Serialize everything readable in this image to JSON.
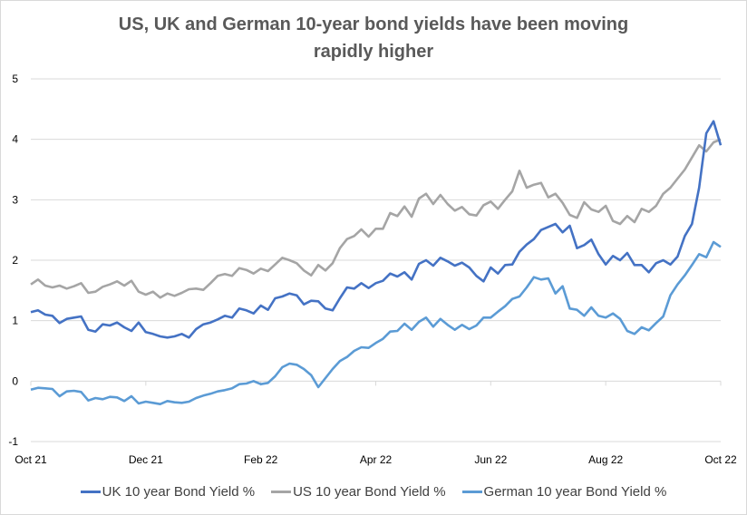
{
  "chart_data": {
    "type": "line",
    "title_line1": "US, UK and German 10-year bond yields have been moving",
    "title_line2": "rapidly higher",
    "title": "US, UK and German 10-year bond yields have been moving rapidly higher",
    "xlabel": "",
    "ylabel": "",
    "ylim": [
      -1,
      5
    ],
    "yticks": [
      "-1",
      "0",
      "1",
      "2",
      "3",
      "4",
      "5"
    ],
    "xticks": [
      "Oct 21",
      "Dec 21",
      "Feb 22",
      "Apr 22",
      "Jun 22",
      "Aug 22",
      "Oct 22"
    ],
    "x_range_months": [
      0,
      12
    ],
    "grid": true,
    "legend_position": "bottom",
    "series": [
      {
        "name": "UK 10 year Bond Yield %",
        "color": "#4472c4",
        "values": [
          1.14,
          1.17,
          1.1,
          1.08,
          0.96,
          1.03,
          1.05,
          1.07,
          0.85,
          0.82,
          0.94,
          0.92,
          0.97,
          0.89,
          0.83,
          0.97,
          0.81,
          0.78,
          0.74,
          0.72,
          0.74,
          0.78,
          0.72,
          0.86,
          0.94,
          0.97,
          1.02,
          1.08,
          1.05,
          1.2,
          1.17,
          1.12,
          1.25,
          1.18,
          1.37,
          1.4,
          1.45,
          1.42,
          1.27,
          1.33,
          1.32,
          1.2,
          1.17,
          1.37,
          1.55,
          1.53,
          1.62,
          1.54,
          1.62,
          1.66,
          1.78,
          1.73,
          1.8,
          1.68,
          1.94,
          2.0,
          1.91,
          2.04,
          1.98,
          1.91,
          1.96,
          1.88,
          1.74,
          1.65,
          1.88,
          1.78,
          1.92,
          1.93,
          2.14,
          2.26,
          2.35,
          2.5,
          2.55,
          2.6,
          2.46,
          2.57,
          2.2,
          2.25,
          2.34,
          2.1,
          1.93,
          2.07,
          2.0,
          2.12,
          1.92,
          1.92,
          1.8,
          1.95,
          2.0,
          1.93,
          2.06,
          2.4,
          2.6,
          3.2,
          4.1,
          4.3,
          3.9
        ]
      },
      {
        "name": "US 10 year Bond Yield %",
        "color": "#a5a5a5",
        "values": [
          1.6,
          1.68,
          1.58,
          1.55,
          1.58,
          1.53,
          1.57,
          1.62,
          1.46,
          1.48,
          1.56,
          1.6,
          1.65,
          1.58,
          1.66,
          1.48,
          1.43,
          1.48,
          1.38,
          1.45,
          1.41,
          1.46,
          1.52,
          1.53,
          1.51,
          1.62,
          1.74,
          1.77,
          1.74,
          1.87,
          1.84,
          1.78,
          1.86,
          1.82,
          1.93,
          2.04,
          2.0,
          1.95,
          1.83,
          1.75,
          1.92,
          1.83,
          1.95,
          2.2,
          2.35,
          2.4,
          2.51,
          2.39,
          2.52,
          2.52,
          2.78,
          2.73,
          2.89,
          2.72,
          3.02,
          3.1,
          2.93,
          3.08,
          2.93,
          2.82,
          2.88,
          2.76,
          2.74,
          2.91,
          2.97,
          2.85,
          3.0,
          3.14,
          3.48,
          3.2,
          3.25,
          3.28,
          3.04,
          3.1,
          2.95,
          2.75,
          2.7,
          2.96,
          2.84,
          2.8,
          2.9,
          2.65,
          2.6,
          2.73,
          2.63,
          2.85,
          2.8,
          2.9,
          3.1,
          3.2,
          3.35,
          3.5,
          3.7,
          3.9,
          3.8,
          3.95,
          4.0
        ]
      },
      {
        "name": "German 10 year Bond Yield %",
        "color": "#5b9bd5",
        "values": [
          -0.14,
          -0.11,
          -0.12,
          -0.13,
          -0.25,
          -0.17,
          -0.16,
          -0.18,
          -0.32,
          -0.28,
          -0.3,
          -0.26,
          -0.27,
          -0.33,
          -0.25,
          -0.37,
          -0.34,
          -0.36,
          -0.38,
          -0.33,
          -0.35,
          -0.36,
          -0.34,
          -0.28,
          -0.24,
          -0.21,
          -0.17,
          -0.15,
          -0.12,
          -0.05,
          -0.04,
          0.0,
          -0.05,
          -0.03,
          0.08,
          0.23,
          0.29,
          0.27,
          0.2,
          0.1,
          -0.1,
          0.05,
          0.2,
          0.33,
          0.4,
          0.5,
          0.56,
          0.55,
          0.63,
          0.7,
          0.82,
          0.83,
          0.95,
          0.85,
          0.98,
          1.05,
          0.9,
          1.03,
          0.93,
          0.85,
          0.93,
          0.86,
          0.92,
          1.05,
          1.05,
          1.15,
          1.24,
          1.36,
          1.4,
          1.55,
          1.72,
          1.68,
          1.7,
          1.45,
          1.57,
          1.2,
          1.18,
          1.08,
          1.22,
          1.08,
          1.05,
          1.12,
          1.03,
          0.83,
          0.78,
          0.89,
          0.84,
          0.96,
          1.07,
          1.42,
          1.6,
          1.75,
          1.92,
          2.1,
          2.05,
          2.3,
          2.22
        ]
      }
    ]
  }
}
